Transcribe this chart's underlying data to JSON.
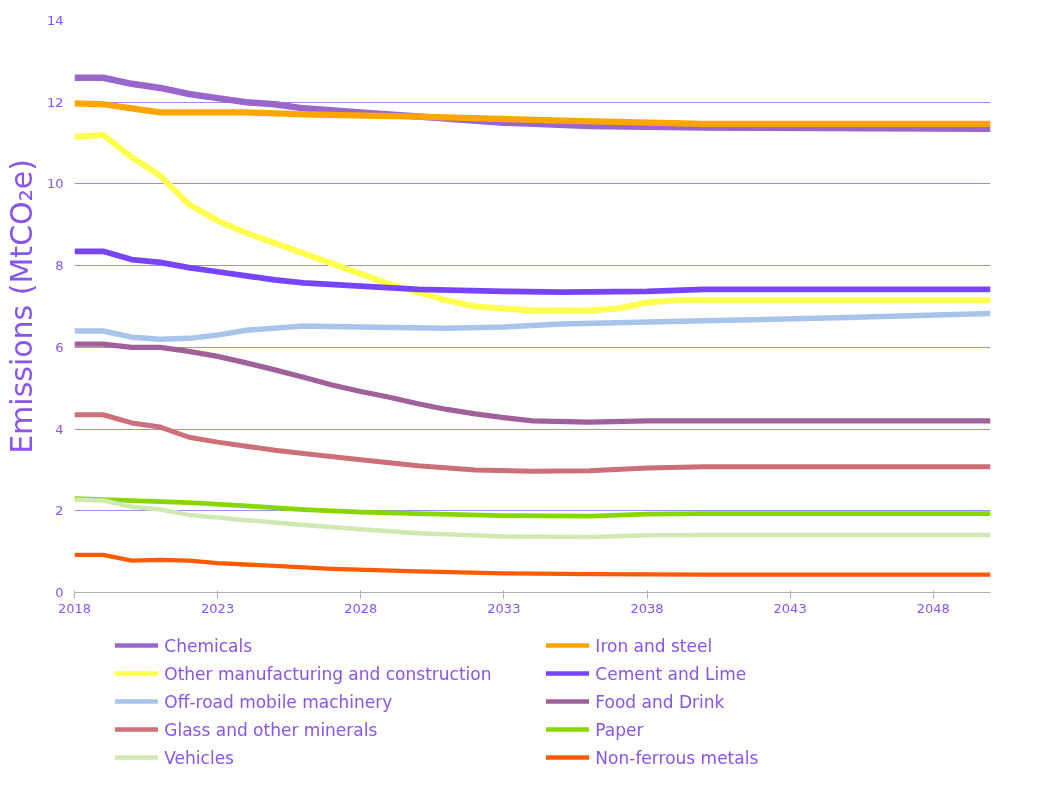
{
  "chart_data": {
    "type": "line",
    "ylabel": "Emissions (MtCO₂e)",
    "xlim": [
      2018,
      2050
    ],
    "xticks": [
      2018,
      2023,
      2028,
      2033,
      2038,
      2043,
      2048
    ],
    "ylim": [
      0,
      14
    ],
    "yticks": [
      0,
      2,
      4,
      6,
      8,
      10,
      12,
      14
    ],
    "grid": "y",
    "legend": "bottom",
    "marker": "none",
    "line_style": "solid",
    "series": [
      {
        "name": "Chemicals",
        "color": "#9966cc",
        "x": [
          2018,
          2019,
          2020,
          2021,
          2022,
          2023,
          2024,
          2025,
          2026,
          2028,
          2030,
          2033,
          2036,
          2040,
          2050
        ],
        "values": [
          12.6,
          12.6,
          12.45,
          12.35,
          12.2,
          12.1,
          12.0,
          11.95,
          11.85,
          11.75,
          11.65,
          11.5,
          11.42,
          11.38,
          11.35
        ]
      },
      {
        "name": "Iron and steel",
        "color": "#ffa500",
        "x": [
          2018,
          2019,
          2020,
          2021,
          2022,
          2024,
          2026,
          2030,
          2035,
          2040,
          2050
        ],
        "values": [
          11.97,
          11.95,
          11.85,
          11.75,
          11.75,
          11.75,
          11.7,
          11.65,
          11.55,
          11.47,
          11.47
        ]
      },
      {
        "name": "Other manufacturing and construction",
        "color": "#ffff4d",
        "x": [
          2018,
          2019,
          2020,
          2021,
          2022,
          2023,
          2024,
          2025,
          2026,
          2027,
          2028,
          2029,
          2030,
          2031,
          2032,
          2033,
          2034,
          2036,
          2037,
          2038,
          2039,
          2050
        ],
        "values": [
          11.15,
          11.2,
          10.65,
          10.2,
          9.5,
          9.1,
          8.8,
          8.55,
          8.3,
          8.05,
          7.8,
          7.55,
          7.35,
          7.15,
          7.0,
          6.95,
          6.9,
          6.9,
          6.95,
          7.1,
          7.15,
          7.15
        ]
      },
      {
        "name": "Cement and Lime",
        "color": "#7744ff",
        "x": [
          2018,
          2019,
          2020,
          2021,
          2022,
          2023,
          2024,
          2025,
          2026,
          2028,
          2030,
          2033,
          2035,
          2038,
          2040,
          2050
        ],
        "values": [
          8.35,
          8.35,
          8.15,
          8.08,
          7.95,
          7.85,
          7.75,
          7.65,
          7.58,
          7.5,
          7.42,
          7.37,
          7.35,
          7.37,
          7.42,
          7.42
        ]
      },
      {
        "name": "Off-road mobile machinery",
        "color": "#a9c4ea",
        "x": [
          2018,
          2019,
          2020,
          2021,
          2022,
          2023,
          2024,
          2026,
          2028,
          2031,
          2033,
          2035,
          2040,
          2045,
          2050
        ],
        "values": [
          6.4,
          6.4,
          6.25,
          6.2,
          6.22,
          6.3,
          6.42,
          6.52,
          6.5,
          6.47,
          6.5,
          6.57,
          6.65,
          6.73,
          6.83
        ]
      },
      {
        "name": "Food and Drink",
        "color": "#a0609a",
        "x": [
          2018,
          2019,
          2020,
          2021,
          2022,
          2023,
          2024,
          2025,
          2026,
          2027,
          2028,
          2029,
          2030,
          2031,
          2032,
          2033,
          2034,
          2036,
          2038,
          2050
        ],
        "values": [
          6.08,
          6.08,
          6.0,
          6.0,
          5.9,
          5.78,
          5.62,
          5.45,
          5.27,
          5.08,
          4.92,
          4.78,
          4.62,
          4.48,
          4.37,
          4.28,
          4.2,
          4.17,
          4.2,
          4.2
        ]
      },
      {
        "name": "Glass and other minerals",
        "color": "#cc6f77",
        "x": [
          2018,
          2019,
          2020,
          2021,
          2022,
          2023,
          2024,
          2025,
          2026,
          2028,
          2030,
          2032,
          2034,
          2036,
          2038,
          2040,
          2050
        ],
        "values": [
          4.35,
          4.35,
          4.15,
          4.05,
          3.8,
          3.68,
          3.58,
          3.48,
          3.4,
          3.25,
          3.1,
          3.0,
          2.97,
          2.98,
          3.05,
          3.08,
          3.08
        ]
      },
      {
        "name": "Paper",
        "color": "#88d600",
        "x": [
          2018,
          2020,
          2022,
          2024,
          2026,
          2028,
          2030,
          2033,
          2036,
          2038,
          2040,
          2050
        ],
        "values": [
          2.3,
          2.25,
          2.2,
          2.12,
          2.03,
          1.97,
          1.93,
          1.88,
          1.87,
          1.92,
          1.93,
          1.93
        ]
      },
      {
        "name": "Vehicles",
        "color": "#cfe9b0",
        "x": [
          2018,
          2019,
          2020,
          2021,
          2022,
          2024,
          2026,
          2028,
          2030,
          2033,
          2036,
          2038,
          2040,
          2050
        ],
        "values": [
          2.27,
          2.25,
          2.1,
          2.03,
          1.9,
          1.77,
          1.65,
          1.55,
          1.45,
          1.37,
          1.36,
          1.4,
          1.41,
          1.41
        ]
      },
      {
        "name": "Non-ferrous metals",
        "color": "#ff5a00",
        "x": [
          2018,
          2019,
          2020,
          2021,
          2022,
          2023,
          2025,
          2027,
          2030,
          2033,
          2036,
          2040,
          2050
        ],
        "values": [
          0.92,
          0.92,
          0.78,
          0.8,
          0.78,
          0.72,
          0.65,
          0.58,
          0.52,
          0.47,
          0.45,
          0.44,
          0.44
        ]
      }
    ]
  }
}
